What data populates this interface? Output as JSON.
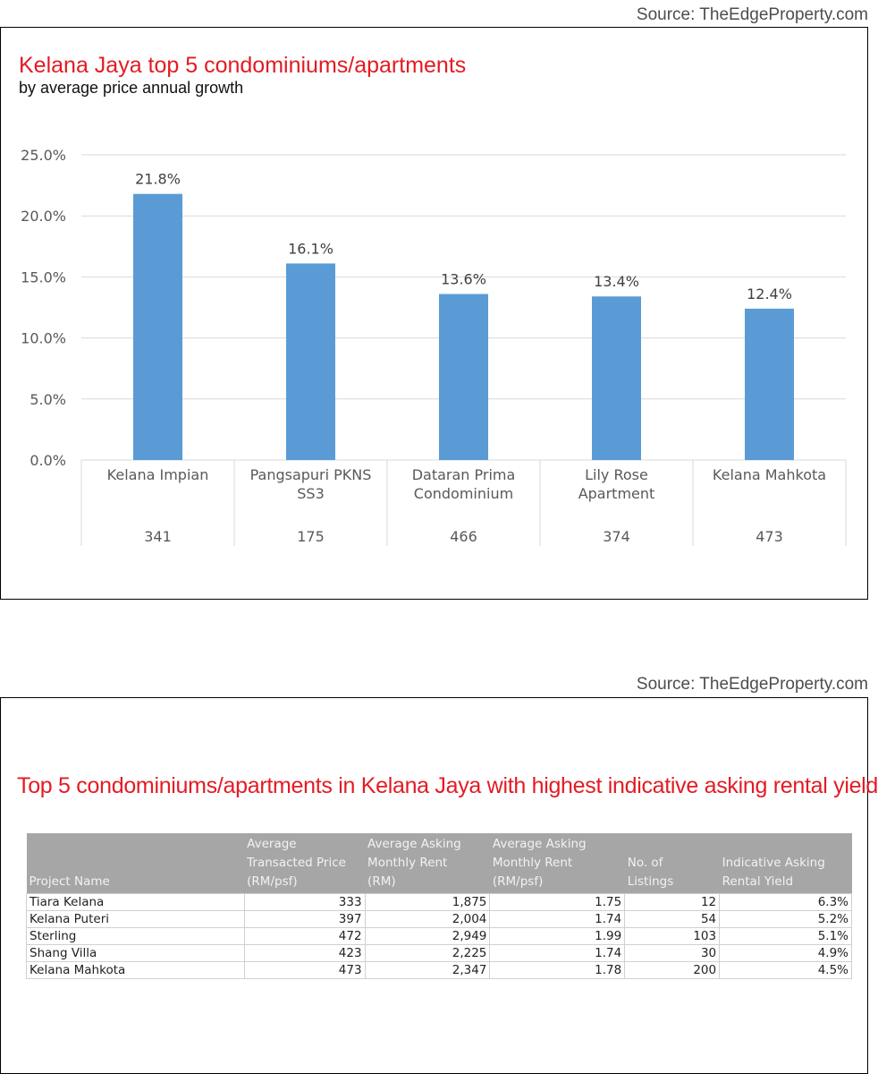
{
  "source_top": "Source: TheEdgeProperty.com",
  "source_bottom": "Source: TheEdgeProperty.com",
  "colors": {
    "title": "#e31b23",
    "bar": "#5b9bd5",
    "table_header": "#a6a6a6"
  },
  "chart_data": {
    "type": "bar",
    "title": "Kelana Jaya top 5 condominiums/apartments",
    "subtitle": "by average price annual growth",
    "categories": [
      "Kelana Impian",
      "Pangsapuri PKNS SS3",
      "Dataran Prima Condominium",
      "Lily Rose Apartment",
      "Kelana Mahkota"
    ],
    "category_lines": [
      [
        "Kelana Impian"
      ],
      [
        "Pangsapuri PKNS",
        "SS3"
      ],
      [
        "Dataran Prima",
        "Condominium"
      ],
      [
        "Lily Rose",
        "Apartment"
      ],
      [
        "Kelana Mahkota"
      ]
    ],
    "secondary_labels": [
      "341",
      "175",
      "466",
      "374",
      "473"
    ],
    "values": [
      21.8,
      16.1,
      13.6,
      13.4,
      12.4
    ],
    "value_labels": [
      "21.8%",
      "16.1%",
      "13.6%",
      "13.4%",
      "12.4%"
    ],
    "yticks": [
      0,
      5,
      10,
      15,
      20,
      25
    ],
    "ytick_labels": [
      "0.0%",
      "5.0%",
      "10.0%",
      "15.0%",
      "20.0%",
      "25.0%"
    ],
    "ylim": [
      0,
      25
    ],
    "grid": true
  },
  "table": {
    "title": "Top 5 condominiums/apartments in Kelana Jaya with highest indicative asking rental yield",
    "headers": [
      [
        "Project Name"
      ],
      [
        "Average",
        "Transacted Price",
        "(RM/psf)"
      ],
      [
        "Average Asking",
        "Monthly Rent",
        "(RM)"
      ],
      [
        "Average Asking",
        "Monthly Rent",
        "(RM/psf)"
      ],
      [
        "No. of",
        "Listings"
      ],
      [
        "Indicative Asking",
        "Rental Yield"
      ]
    ],
    "rows": [
      [
        "Tiara Kelana",
        "333",
        "1,875",
        "1.75",
        "12",
        "6.3%"
      ],
      [
        "Kelana Puteri",
        "397",
        "2,004",
        "1.74",
        "54",
        "5.2%"
      ],
      [
        "Sterling",
        "472",
        "2,949",
        "1.99",
        "103",
        "5.1%"
      ],
      [
        "Shang Villa",
        "423",
        "2,225",
        "1.74",
        "30",
        "4.9%"
      ],
      [
        "Kelana Mahkota",
        "473",
        "2,347",
        "1.78",
        "200",
        "4.5%"
      ]
    ]
  }
}
